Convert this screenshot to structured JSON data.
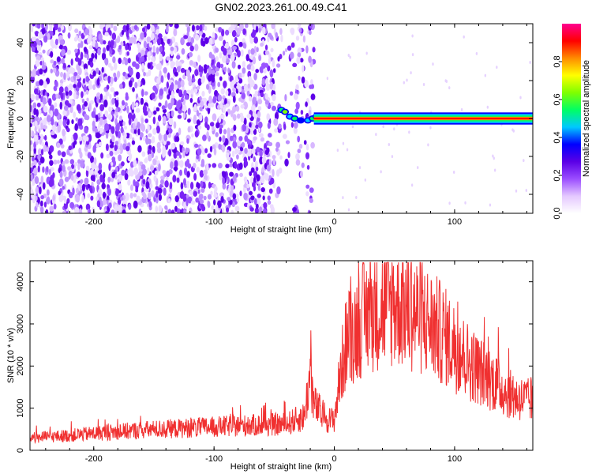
{
  "title": "GN02.2023.261.00.49.C41",
  "chart_data": [
    {
      "type": "heatmap",
      "xlabel": "Height of straight line (km)",
      "ylabel": "Frequency (Hz)",
      "xlim": [
        -253,
        165
      ],
      "ylim": [
        -50,
        50
      ],
      "xticks": [
        -200,
        -100,
        0,
        100
      ],
      "yticks": [
        -40,
        -20,
        0,
        20,
        40
      ],
      "grid": false,
      "colorbar": {
        "label": "Normalized spectral amplitude",
        "range": [
          0,
          1
        ],
        "ticks": [
          "0.0",
          "0.2",
          "0.4",
          "0.6",
          "0.8"
        ],
        "colors": [
          "#ffffff",
          "#e4c8ff",
          "#9b4dff",
          "#5a00e6",
          "#0000ff",
          "#00c8ff",
          "#00ff64",
          "#7fff00",
          "#ffff00",
          "#ff8c00",
          "#ff0000",
          "#ff0090"
        ]
      },
      "regions": [
        {
          "name": "noise",
          "x_range": [
            -253,
            -17
          ],
          "freq_range": [
            -50,
            50
          ],
          "amplitude": [
            0.0,
            0.2
          ]
        },
        {
          "name": "onset",
          "x_range": [
            -47,
            -14
          ],
          "freq_range": [
            -3,
            6
          ],
          "amplitude": [
            0.3,
            0.5
          ]
        },
        {
          "name": "carrier",
          "x_range": [
            -17,
            165
          ],
          "freq_range": [
            -2,
            2
          ],
          "amplitude": [
            0.7,
            1.0
          ]
        }
      ]
    },
    {
      "type": "line",
      "xlabel": "Height of straight line (km)",
      "ylabel": "SNR (10 * v/v)",
      "xlim": [
        -253,
        165
      ],
      "ylim": [
        0,
        4500
      ],
      "xticks": [
        -200,
        -100,
        0,
        100
      ],
      "yticks": [
        0,
        1000,
        2000,
        3000,
        4000
      ],
      "grid": false,
      "series": [
        {
          "color": "#f03030",
          "x": [
            -253,
            -230,
            -200,
            -160,
            -120,
            -80,
            -40,
            -25,
            -20,
            -17,
            -10,
            -3,
            0,
            5,
            10,
            20,
            30,
            40,
            50,
            60,
            70,
            80,
            90,
            100,
            110,
            120,
            130,
            140,
            150,
            160,
            165
          ],
          "y": [
            300,
            330,
            400,
            480,
            530,
            580,
            620,
            800,
            1800,
            1100,
            850,
            700,
            750,
            1800,
            2600,
            3000,
            3300,
            3400,
            3500,
            3400,
            3200,
            3000,
            2750,
            2450,
            2150,
            1900,
            1700,
            1450,
            1250,
            1200,
            1150
          ]
        }
      ]
    }
  ]
}
